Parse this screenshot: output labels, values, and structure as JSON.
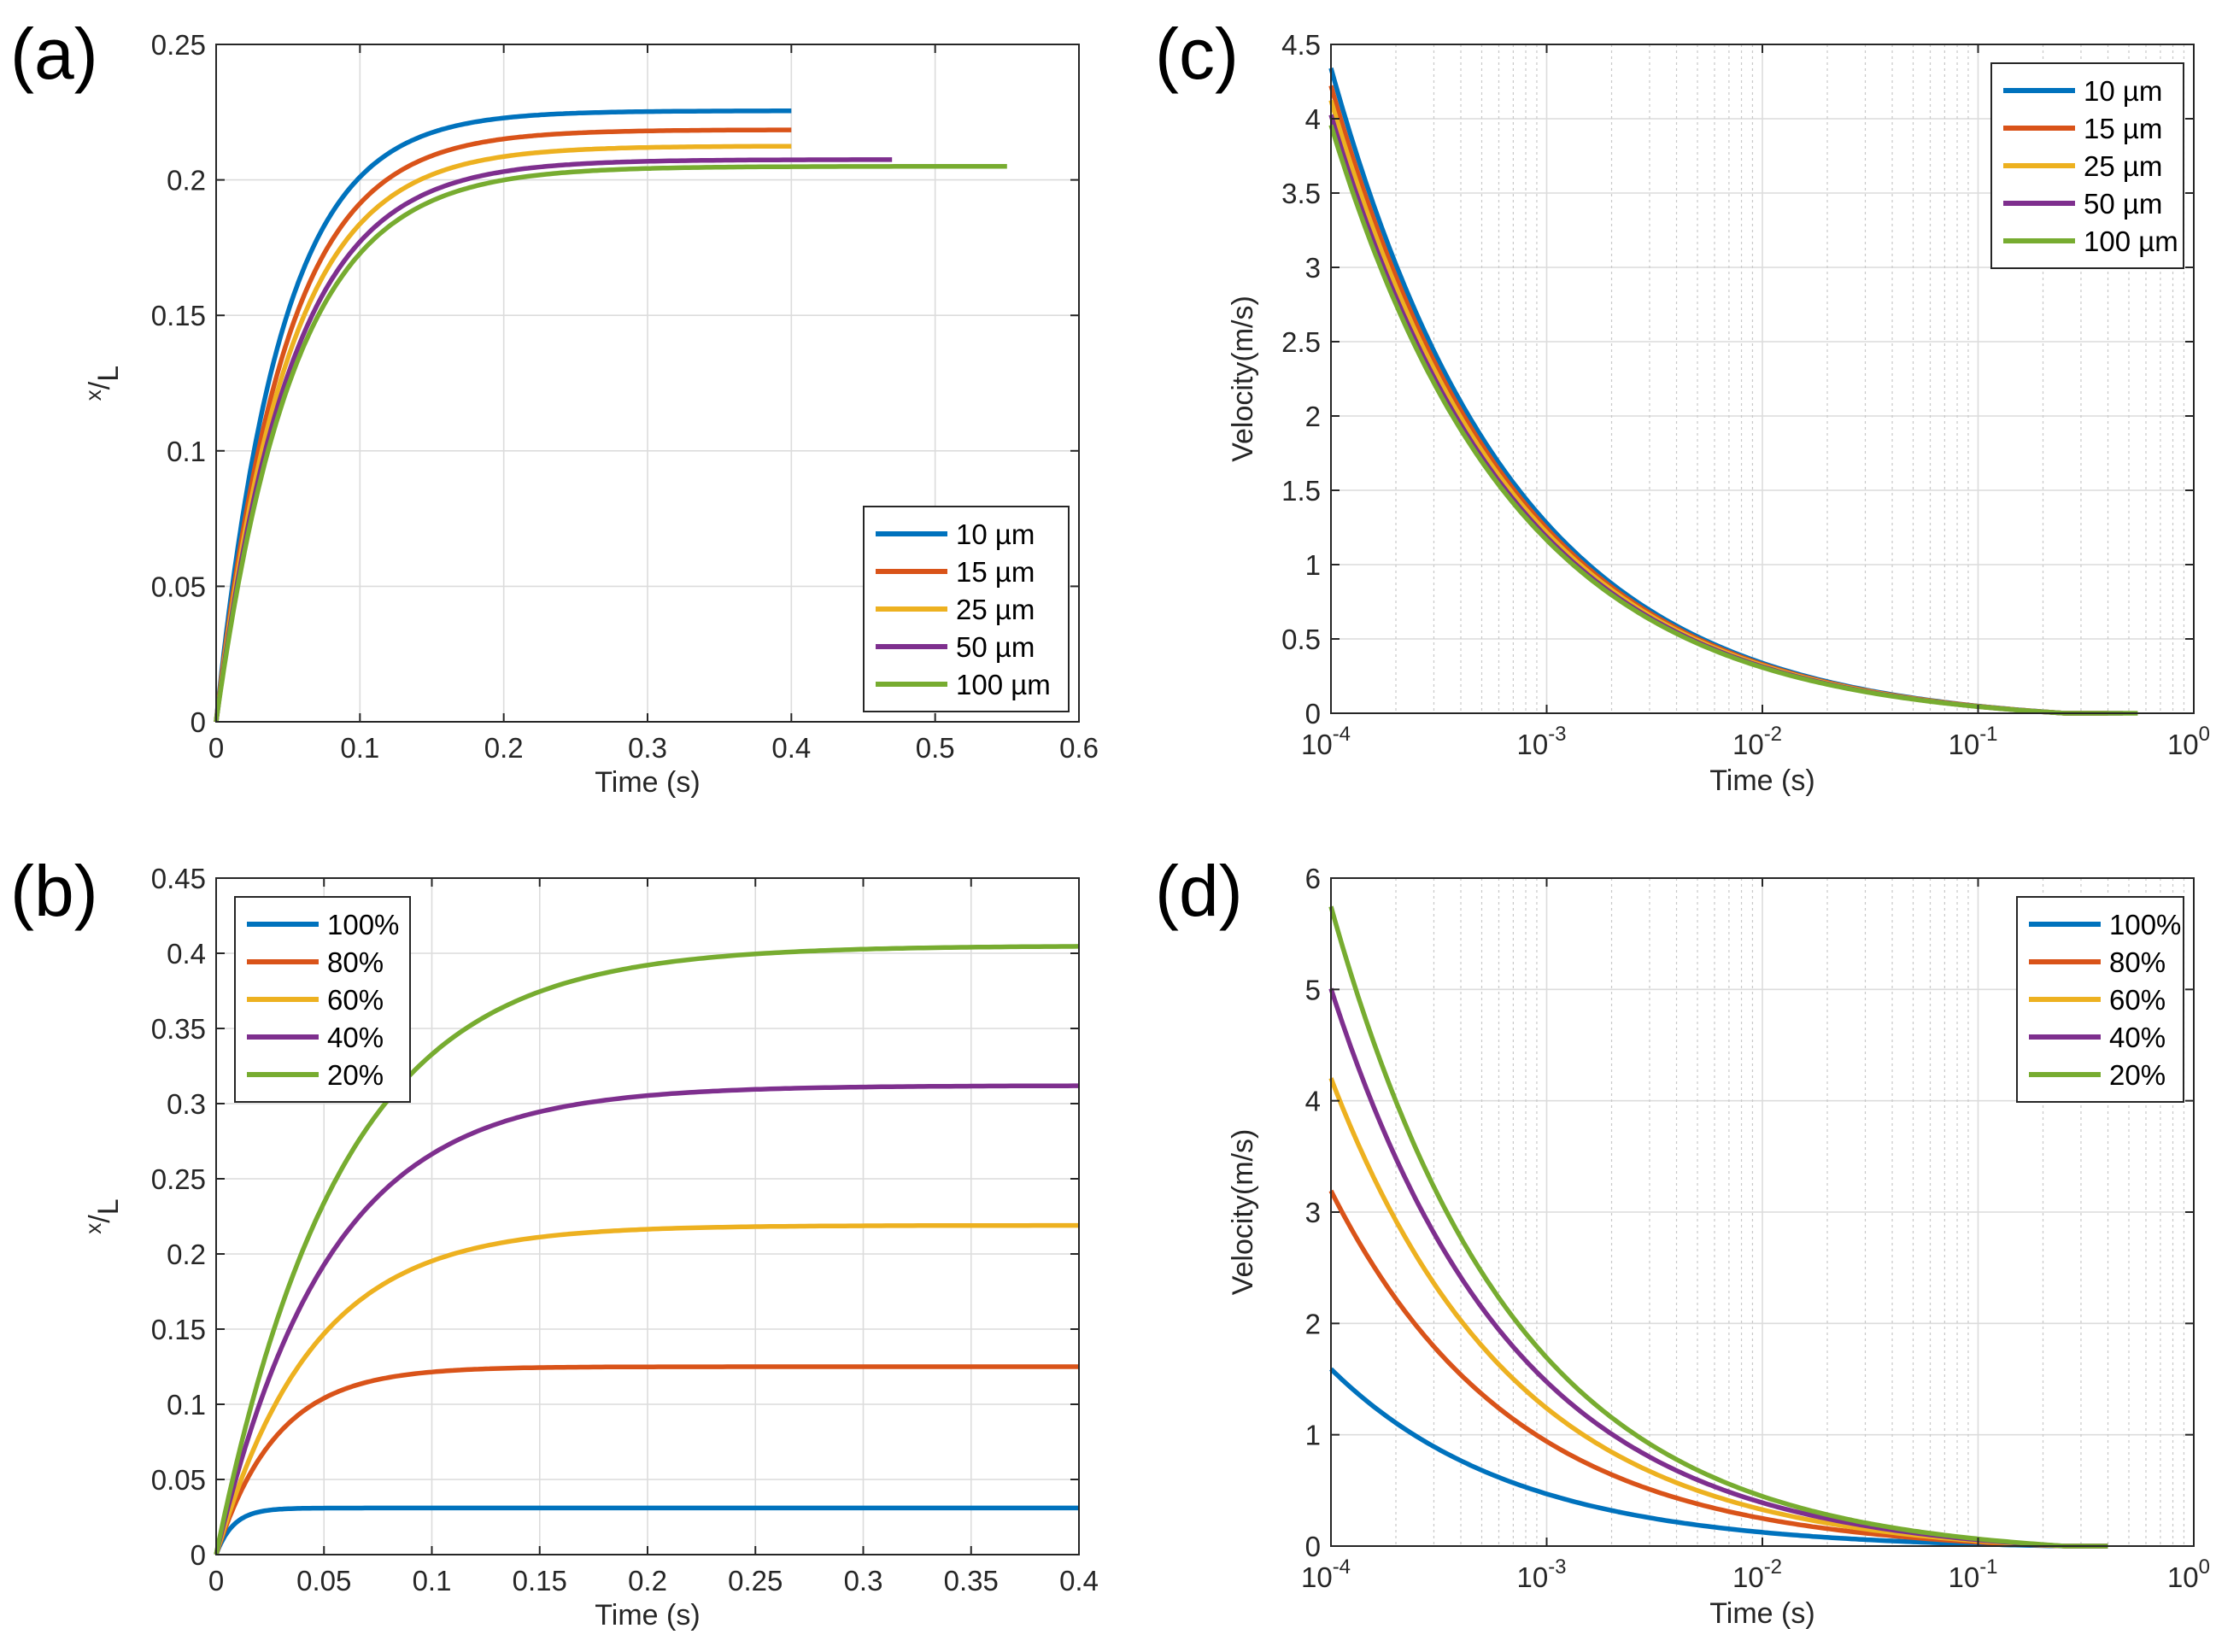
{
  "figure": {
    "panels": [
      {
        "id": "a",
        "label": "(a)"
      },
      {
        "id": "b",
        "label": "(b)"
      },
      {
        "id": "c",
        "label": "(c)"
      },
      {
        "id": "d",
        "label": "(d)"
      }
    ]
  },
  "chart_data": [
    {
      "id": "a",
      "type": "line",
      "label": "(a)",
      "xlabel": "Time (s)",
      "ylabel_main": "x",
      "ylabel_sub": "L",
      "ylabel_sep": "/",
      "xscale": "linear",
      "xlim": [
        0,
        0.6
      ],
      "ylim": [
        0,
        0.25
      ],
      "xticks": [
        0,
        0.1,
        0.2,
        0.3,
        0.4,
        0.5,
        0.6
      ],
      "xtick_labels": [
        "0",
        "0.1",
        "0.2",
        "0.3",
        "0.4",
        "0.5",
        "0.6"
      ],
      "yticks": [
        0,
        0.05,
        0.1,
        0.15,
        0.2,
        0.25
      ],
      "ytick_labels": [
        "0",
        "0.05",
        "0.1",
        "0.15",
        "0.2",
        "0.25"
      ],
      "grid": true,
      "legend_position": "bottom-right",
      "series": [
        {
          "name": "10 µm",
          "color": "#0072BD",
          "model": "rise",
          "A": 0.2255,
          "tau": 0.045,
          "t_end": 0.4
        },
        {
          "name": "15 µm",
          "color": "#D95319",
          "model": "rise",
          "A": 0.2185,
          "tau": 0.048,
          "t_end": 0.4
        },
        {
          "name": "25 µm",
          "color": "#EDB120",
          "model": "rise",
          "A": 0.2125,
          "tau": 0.05,
          "t_end": 0.4
        },
        {
          "name": "50 µm",
          "color": "#7E2F8E",
          "model": "rise",
          "A": 0.2075,
          "tau": 0.052,
          "t_end": 0.47
        },
        {
          "name": "100 µm",
          "color": "#77AC30",
          "model": "rise",
          "A": 0.205,
          "tau": 0.054,
          "t_end": 0.55
        }
      ]
    },
    {
      "id": "b",
      "type": "line",
      "label": "(b)",
      "xlabel": "Time (s)",
      "ylabel_main": "x",
      "ylabel_sub": "L",
      "ylabel_sep": "/",
      "xscale": "linear",
      "xlim": [
        0,
        0.4
      ],
      "ylim": [
        0,
        0.45
      ],
      "xticks": [
        0,
        0.05,
        0.1,
        0.15,
        0.2,
        0.25,
        0.3,
        0.35,
        0.4
      ],
      "xtick_labels": [
        "0",
        "0.05",
        "0.1",
        "0.15",
        "0.2",
        "0.25",
        "0.3",
        "0.35",
        "0.4"
      ],
      "yticks": [
        0,
        0.05,
        0.1,
        0.15,
        0.2,
        0.25,
        0.3,
        0.35,
        0.4,
        0.45
      ],
      "ytick_labels": [
        "0",
        "0.05",
        "0.1",
        "0.15",
        "0.2",
        "0.25",
        "0.3",
        "0.35",
        "0.4",
        "0.45"
      ],
      "grid": true,
      "legend_position": "top-left",
      "series": [
        {
          "name": "100%",
          "color": "#0072BD",
          "model": "rise",
          "A": 0.031,
          "tau": 0.008,
          "t_end": 0.4
        },
        {
          "name": "80%",
          "color": "#D95319",
          "model": "rise",
          "A": 0.125,
          "tau": 0.028,
          "t_end": 0.4
        },
        {
          "name": "60%",
          "color": "#EDB120",
          "model": "rise",
          "A": 0.219,
          "tau": 0.045,
          "t_end": 0.4
        },
        {
          "name": "40%",
          "color": "#7E2F8E",
          "model": "rise",
          "A": 0.312,
          "tau": 0.052,
          "t_end": 0.4
        },
        {
          "name": "20%",
          "color": "#77AC30",
          "model": "rise",
          "A": 0.405,
          "tau": 0.058,
          "t_end": 0.4
        }
      ]
    },
    {
      "id": "c",
      "type": "line",
      "label": "(c)",
      "xlabel": "Time (s)",
      "ylabel": "Velocity(m/s)",
      "xscale": "log",
      "xlim": [
        0.0001,
        1
      ],
      "ylim": [
        0,
        4.5
      ],
      "xtick_exponents": [
        "-4",
        "-3",
        "-2",
        "-1",
        "0"
      ],
      "xtick_base": "10",
      "yticks": [
        0,
        0.5,
        1,
        1.5,
        2,
        2.5,
        3,
        3.5,
        4,
        4.5
      ],
      "ytick_labels": [
        "0",
        "0.5",
        "1",
        "1.5",
        "2",
        "2.5",
        "3",
        "3.5",
        "4",
        "4.5"
      ],
      "grid": true,
      "legend_position": "top-right",
      "series": [
        {
          "name": "10 µm",
          "color": "#0072BD",
          "model": "decay",
          "y0": 4.42,
          "t_end": 0.4
        },
        {
          "name": "15 µm",
          "color": "#D95319",
          "model": "decay",
          "y0": 4.3,
          "t_end": 0.4
        },
        {
          "name": "25 µm",
          "color": "#EDB120",
          "model": "decay",
          "y0": 4.2,
          "t_end": 0.4
        },
        {
          "name": "50 µm",
          "color": "#7E2F8E",
          "model": "decay",
          "y0": 4.1,
          "t_end": 0.47
        },
        {
          "name": "100 µm",
          "color": "#77AC30",
          "model": "decay",
          "y0": 4.03,
          "t_end": 0.55
        }
      ]
    },
    {
      "id": "d",
      "type": "line",
      "label": "(d)",
      "xlabel": "Time (s)",
      "ylabel": "Velocity(m/s)",
      "xscale": "log",
      "xlim": [
        0.0001,
        1
      ],
      "ylim": [
        0,
        6
      ],
      "xtick_exponents": [
        "-4",
        "-3",
        "-2",
        "-1",
        "0"
      ],
      "xtick_base": "10",
      "yticks": [
        0,
        1,
        2,
        3,
        4,
        5,
        6
      ],
      "ytick_labels": [
        "0",
        "1",
        "2",
        "3",
        "4",
        "5",
        "6"
      ],
      "grid": true,
      "legend_position": "top-right",
      "series": [
        {
          "name": "100%",
          "color": "#0072BD",
          "model": "decay",
          "y0": 1.62,
          "t_end": 0.4
        },
        {
          "name": "80%",
          "color": "#D95319",
          "model": "decay",
          "y0": 3.25,
          "t_end": 0.4
        },
        {
          "name": "60%",
          "color": "#EDB120",
          "model": "decay",
          "y0": 4.28,
          "t_end": 0.4
        },
        {
          "name": "40%",
          "color": "#7E2F8E",
          "model": "decay",
          "y0": 5.1,
          "t_end": 0.4
        },
        {
          "name": "20%",
          "color": "#77AC30",
          "model": "decay",
          "y0": 5.85,
          "t_end": 0.4
        }
      ]
    }
  ]
}
